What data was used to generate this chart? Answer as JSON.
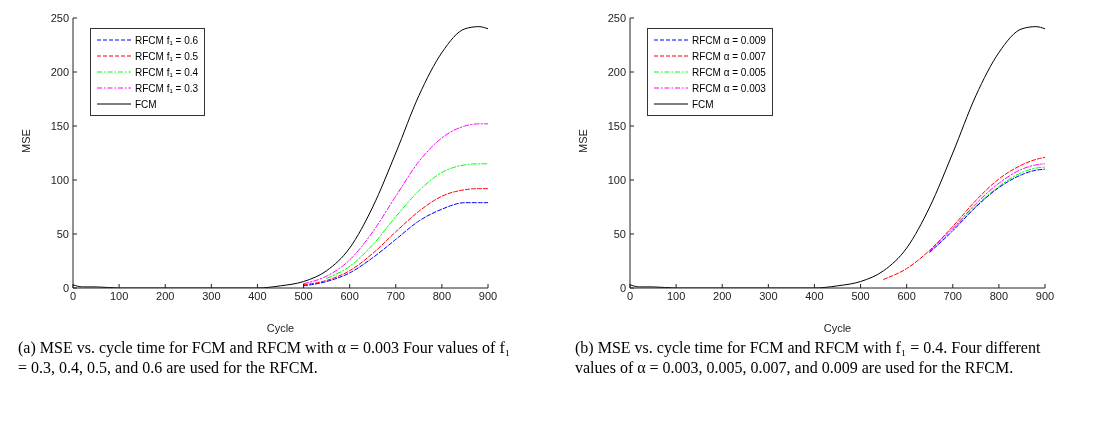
{
  "chart_data": [
    {
      "type": "line",
      "xlabel": "Cycle",
      "ylabel": "MSE",
      "xlim": [
        0,
        900
      ],
      "ylim": [
        0,
        250
      ],
      "xticks": [
        0,
        100,
        200,
        300,
        400,
        500,
        600,
        700,
        800,
        900
      ],
      "yticks": [
        0,
        50,
        100,
        150,
        200,
        250
      ],
      "legend": "top left",
      "marker": "none",
      "x": [
        0,
        20,
        50,
        100,
        200,
        300,
        400,
        450,
        500,
        550,
        600,
        650,
        700,
        750,
        800,
        850,
        880,
        900
      ],
      "series": [
        {
          "name": "RFCM f₁ = 0.6",
          "color": "#0000ff",
          "line_style": "dashed",
          "values": [
            null,
            null,
            null,
            null,
            null,
            null,
            null,
            null,
            2,
            6,
            14,
            28,
            45,
            62,
            73,
            79,
            79,
            79
          ]
        },
        {
          "name": "RFCM f₁ = 0.5",
          "color": "#ff0000",
          "line_style": "dashed",
          "values": [
            null,
            null,
            null,
            null,
            null,
            null,
            null,
            null,
            3,
            7,
            16,
            32,
            52,
            71,
            85,
            91,
            92,
            92
          ]
        },
        {
          "name": "RFCM f₁ = 0.4",
          "color": "#00ff00",
          "line_style": "dashdot",
          "values": [
            null,
            null,
            null,
            null,
            null,
            null,
            null,
            null,
            null,
            9,
            20,
            40,
            66,
            90,
            107,
            114,
            115,
            115
          ]
        },
        {
          "name": "RFCM f₁ = 0.3",
          "color": "#ff00ff",
          "line_style": "dashdot",
          "values": [
            null,
            null,
            null,
            null,
            null,
            null,
            null,
            null,
            4,
            11,
            26,
            52,
            85,
            117,
            139,
            150,
            152,
            152
          ]
        },
        {
          "name": "FCM",
          "color": "#000000",
          "line_style": "solid",
          "values": [
            3,
            1,
            1,
            0,
            0,
            0,
            0,
            2,
            6,
            16,
            37,
            75,
            125,
            178,
            218,
            240,
            242,
            240
          ]
        }
      ],
      "annotations": [
        "(a) MSE vs. cycle time for FCM and RFCM with α = 0.003 Four values of f₁ = 0.3, 0.4, 0.5, and 0.6 are used for the RFCM."
      ]
    },
    {
      "type": "line",
      "xlabel": "Cycle",
      "ylabel": "MSE",
      "xlim": [
        0,
        900
      ],
      "ylim": [
        0,
        250
      ],
      "xticks": [
        0,
        100,
        200,
        300,
        400,
        500,
        600,
        700,
        800,
        900
      ],
      "yticks": [
        0,
        50,
        100,
        150,
        200,
        250
      ],
      "legend": "top left",
      "marker": "none",
      "x": [
        0,
        20,
        50,
        100,
        200,
        300,
        400,
        450,
        500,
        550,
        600,
        650,
        700,
        750,
        800,
        850,
        880,
        900
      ],
      "series": [
        {
          "name": "RFCM α = 0.009",
          "color": "#0000ff",
          "line_style": "dashed",
          "values": [
            null,
            null,
            null,
            null,
            null,
            null,
            null,
            null,
            null,
            null,
            null,
            33,
            53,
            75,
            93,
            105,
            109,
            110
          ]
        },
        {
          "name": "RFCM α = 0.007",
          "color": "#ff0000",
          "line_style": "dashed",
          "values": [
            null,
            null,
            null,
            null,
            null,
            null,
            null,
            null,
            null,
            8,
            18,
            35,
            57,
            81,
            101,
            114,
            119,
            121
          ]
        },
        {
          "name": "RFCM α = 0.005",
          "color": "#00ff00",
          "line_style": "dashdot",
          "values": [
            null,
            null,
            null,
            null,
            null,
            null,
            null,
            null,
            null,
            null,
            null,
            null,
            54,
            76,
            94,
            107,
            111,
            112
          ]
        },
        {
          "name": "RFCM α = 0.003",
          "color": "#ff00ff",
          "line_style": "dashdot",
          "values": [
            null,
            null,
            null,
            null,
            null,
            null,
            null,
            null,
            null,
            null,
            null,
            34,
            55,
            78,
            97,
            110,
            114,
            115
          ]
        },
        {
          "name": "FCM",
          "color": "#000000",
          "line_style": "solid",
          "values": [
            3,
            1,
            1,
            0,
            0,
            0,
            0,
            2,
            6,
            16,
            37,
            75,
            125,
            178,
            218,
            240,
            242,
            240
          ]
        }
      ],
      "annotations": [
        "(b) MSE vs. cycle time for FCM and RFCM with f₁ = 0.4. Four different values of α = 0.003, 0.005, 0.007, and 0.009 are used for the RFCM."
      ]
    }
  ]
}
